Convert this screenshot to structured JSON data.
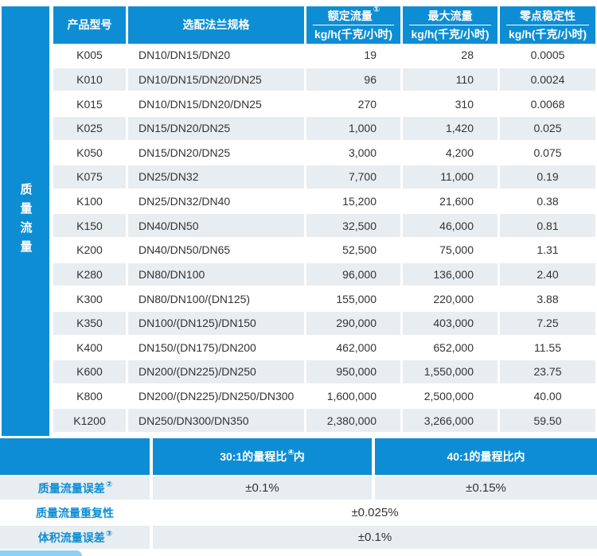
{
  "colors": {
    "accent_blue": "#0d8ed4",
    "row_gray": "#e8edf1",
    "text_dark": "#333333",
    "deco_light_blue": "#8ed1f3"
  },
  "sidebar": {
    "label": "质量流量"
  },
  "table": {
    "headers": {
      "model": "产品型号",
      "flange": "选配法兰规格",
      "rated": {
        "title": "额定流量",
        "sup": "①",
        "unit": "kg/h(千克/小时)"
      },
      "max": {
        "title": "最大流量",
        "sup": "",
        "unit": "kg/h(千克/小时)"
      },
      "zero": {
        "title": "零点稳定性",
        "sup": "",
        "unit": "kg/h(千克/小时)"
      }
    },
    "rows": [
      [
        "K005",
        "DN10/DN15/DN20",
        "19",
        "28",
        "0.0005"
      ],
      [
        "K010",
        "DN10/DN15/DN20/DN25",
        "96",
        "110",
        "0.0024"
      ],
      [
        "K015",
        "DN10/DN15/DN20/DN25",
        "270",
        "310",
        "0.0068"
      ],
      [
        "K025",
        "DN15/DN20/DN25",
        "1,000",
        "1,420",
        "0.025"
      ],
      [
        "K050",
        "DN15/DN20/DN25",
        "3,000",
        "4,200",
        "0.075"
      ],
      [
        "K075",
        "DN25/DN32",
        "7,700",
        "11,000",
        "0.19"
      ],
      [
        "K100",
        "DN25/DN32/DN40",
        "15,200",
        "21,600",
        "0.38"
      ],
      [
        "K150",
        "DN40/DN50",
        "32,500",
        "46,000",
        "0.81"
      ],
      [
        "K200",
        "DN40/DN50/DN65",
        "52,500",
        "75,000",
        "1.31"
      ],
      [
        "K280",
        "DN80/DN100",
        "96,000",
        "136,000",
        "2.40"
      ],
      [
        "K300",
        "DN80/DN100/(DN125)",
        "155,000",
        "220,000",
        "3.88"
      ],
      [
        "K350",
        "DN100/(DN125)/DN150",
        "290,000",
        "403,000",
        "7.25"
      ],
      [
        "K400",
        "DN150/(DN175)/DN200",
        "462,000",
        "652,000",
        "11.55"
      ],
      [
        "K600",
        "DN200/(DN225)/DN250",
        "950,000",
        "1,550,000",
        "23.75"
      ],
      [
        "K800",
        "DN200/(DN225)/DN250/DN300",
        "1,600,000",
        "2,500,000",
        "40.00"
      ],
      [
        "K1200",
        "DN250/DN300/DN350",
        "2,380,000",
        "3,266,000",
        "59.50"
      ]
    ]
  },
  "accuracy": {
    "col1": {
      "text": "30:1的量程比",
      "sup": "④",
      "tail": "内"
    },
    "col2": {
      "text": "40:1的量程比内"
    },
    "rows": [
      {
        "label": "质量流量误差",
        "sup": "②",
        "v1": "±0.1%",
        "v2": "±0.15%"
      },
      {
        "label": "质量流量重复性",
        "sup": "",
        "value": "±0.025%"
      },
      {
        "label": "体积流量误差",
        "sup": "③",
        "value": "±0.1%"
      }
    ]
  }
}
